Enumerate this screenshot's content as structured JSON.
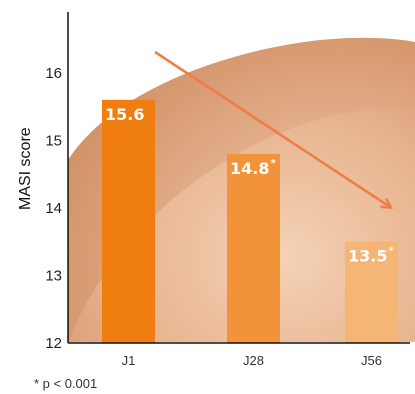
{
  "chart_data": {
    "type": "bar",
    "categories": [
      "J1",
      "J28",
      "J56"
    ],
    "values": [
      15.6,
      14.8,
      13.5
    ],
    "value_labels": [
      "15.6",
      "14.8",
      "13.5"
    ],
    "significance_marks": [
      "",
      "*",
      "*"
    ],
    "bar_colors": [
      "#ef7d0f",
      "#f2933a",
      "#f5b575"
    ],
    "ylabel": "MASI score",
    "ylim": [
      12,
      16.9
    ],
    "yticks": [
      12,
      13,
      14,
      15,
      16
    ],
    "ytick_labels": [
      "12",
      "13",
      "14",
      "15",
      "16"
    ],
    "trend_arrow": {
      "from_category": "J1",
      "to_category": "J56",
      "color": "#ef7d4a"
    },
    "footnote": "* p < 0.001",
    "grid": false,
    "legend": "none"
  }
}
